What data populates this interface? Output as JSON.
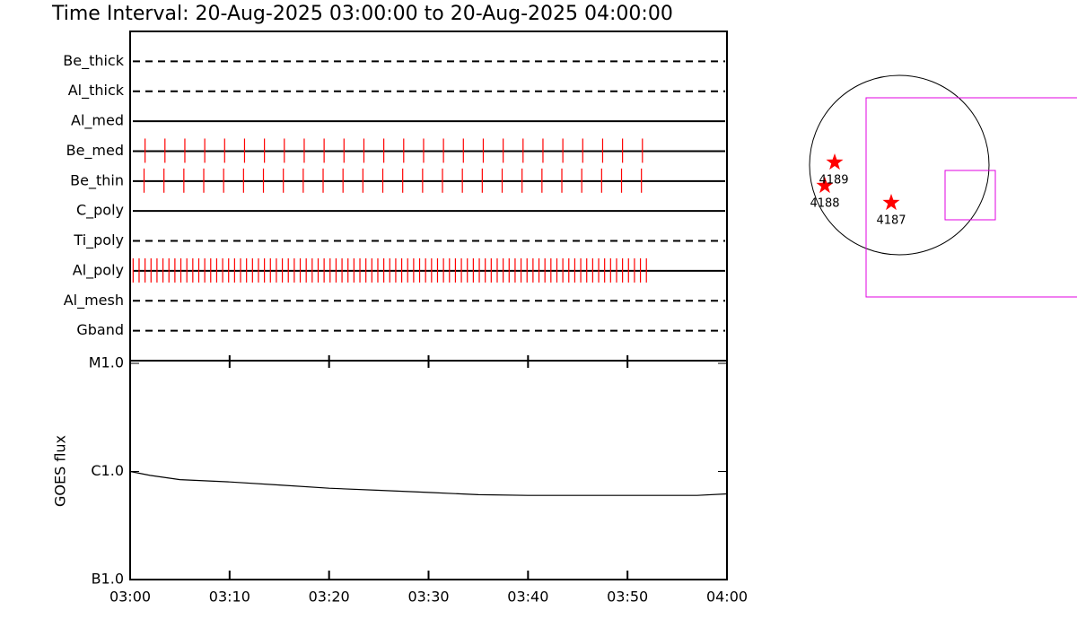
{
  "chart_data": [
    {
      "type": "event",
      "title": "Time Interval: 20-Aug-2025 03:00:00 to 20-Aug-2025 04:00:00",
      "color": "#ff0000",
      "series": [
        {
          "name": "Be_thick",
          "style": "dashed",
          "values": []
        },
        {
          "name": "Al_thick",
          "style": "dashed",
          "values": []
        },
        {
          "name": "Al_med",
          "style": "solid",
          "values": []
        },
        {
          "name": "Be_med",
          "style": "solid",
          "values": [
            1.5,
            3.5,
            5.5,
            7.5,
            9.5,
            11.5,
            13.5,
            15.5,
            17.5,
            19.5,
            21.5,
            23.5,
            25.5,
            27.5,
            29.5,
            31.5,
            33.5,
            35.5,
            37.5,
            39.5,
            41.5,
            43.5,
            45.5,
            47.5,
            49.5,
            51.5
          ]
        },
        {
          "name": "Be_thin",
          "style": "solid",
          "values": [
            1.4,
            3.4,
            5.4,
            7.4,
            9.4,
            11.4,
            13.4,
            15.4,
            17.4,
            19.4,
            21.4,
            23.4,
            25.4,
            27.4,
            29.4,
            31.4,
            33.4,
            35.4,
            37.4,
            39.4,
            41.4,
            43.4,
            45.4,
            47.4,
            49.4,
            51.4
          ]
        },
        {
          "name": "C_poly",
          "style": "solid",
          "values": []
        },
        {
          "name": "Ti_poly",
          "style": "dashed",
          "values": []
        },
        {
          "name": "Al_poly",
          "style": "solid",
          "values": [
            0.3,
            0.9,
            1.5,
            2.1,
            2.7,
            3.3,
            3.9,
            4.5,
            5.1,
            5.7,
            6.3,
            6.9,
            7.5,
            8.1,
            8.7,
            9.3,
            9.9,
            10.5,
            11.1,
            11.7,
            12.3,
            12.9,
            13.5,
            14.1,
            14.7,
            15.3,
            15.9,
            16.5,
            17.1,
            17.7,
            18.3,
            18.9,
            19.5,
            20.1,
            20.7,
            21.3,
            21.9,
            22.5,
            23.1,
            23.7,
            24.3,
            24.9,
            25.5,
            26.1,
            26.7,
            27.3,
            27.9,
            28.5,
            29.1,
            29.7,
            30.3,
            30.9,
            31.5,
            32.1,
            32.7,
            33.3,
            33.9,
            34.5,
            35.1,
            35.7,
            36.3,
            36.9,
            37.5,
            38.1,
            38.7,
            39.3,
            39.9,
            40.5,
            41.1,
            41.7,
            42.3,
            42.9,
            43.5,
            44.1,
            44.7,
            45.3,
            45.9,
            46.5,
            47.1,
            47.7,
            48.3,
            48.9,
            49.5,
            50.1,
            50.7,
            51.3,
            51.9
          ]
        },
        {
          "name": "Al_mesh",
          "style": "dashed",
          "values": []
        },
        {
          "name": "Gband",
          "style": "dashed",
          "values": []
        }
      ]
    },
    {
      "type": "line",
      "y_label": "GOES flux",
      "log_y": true,
      "color": "#000000",
      "x": [
        0,
        2,
        5,
        10,
        15,
        20,
        25,
        30,
        35,
        40,
        45,
        50,
        55,
        57,
        60
      ],
      "values": [
        1e-06,
        9.2e-07,
        8.4e-07,
        8e-07,
        7.5e-07,
        7e-07,
        6.7e-07,
        6.4e-07,
        6.1e-07,
        6e-07,
        6e-07,
        6e-07,
        6e-07,
        6e-07,
        6.2e-07
      ],
      "xlim": [
        0,
        60
      ],
      "xticks": [
        {
          "value": 0,
          "label": "03:00"
        },
        {
          "value": 10,
          "label": "03:10"
        },
        {
          "value": 20,
          "label": "03:20"
        },
        {
          "value": 30,
          "label": "03:30"
        },
        {
          "value": 40,
          "label": "03:40"
        },
        {
          "value": 50,
          "label": "03:50"
        },
        {
          "value": 60,
          "label": "04:00"
        }
      ],
      "ylim": [
        1e-07,
        1e-05
      ],
      "yticks": [
        {
          "value": 1e-07,
          "label": "B1.0"
        },
        {
          "value": 1e-06,
          "label": "C1.0"
        },
        {
          "value": 1e-05,
          "label": "M1.0"
        }
      ]
    }
  ],
  "map": {
    "regions": [
      "4189",
      "4188",
      "4187"
    ]
  }
}
